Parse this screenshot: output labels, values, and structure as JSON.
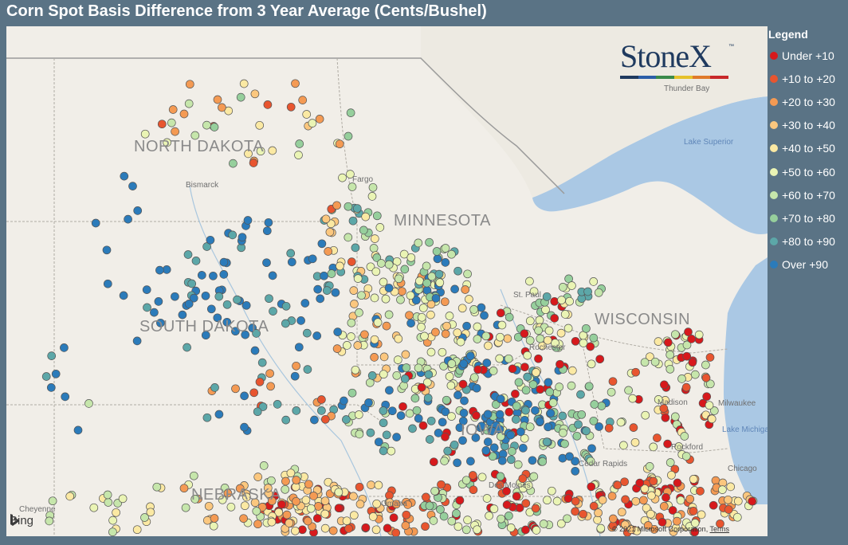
{
  "title": "Corn Spot Basis Difference from 3 Year Average (Cents/Bushel)",
  "legend": {
    "title": "Legend",
    "items": [
      {
        "label": "Under +10",
        "color": "#d7191c"
      },
      {
        "label": "+10 to +20",
        "color": "#e8552f"
      },
      {
        "label": "+20 to +30",
        "color": "#f49a53"
      },
      {
        "label": "+30 to +40",
        "color": "#fbc77e"
      },
      {
        "label": "+40 to +50",
        "color": "#fbe9a3"
      },
      {
        "label": "+50 to +60",
        "color": "#eaf4b4"
      },
      {
        "label": "+60 to +70",
        "color": "#c6e6ab"
      },
      {
        "label": "+70 to +80",
        "color": "#96cf9c"
      },
      {
        "label": "+80 to +90",
        "color": "#5ca7a8"
      },
      {
        "label": "Over +90",
        "color": "#2b7bba"
      }
    ]
  },
  "map": {
    "states": [
      "NORTH DAKOTA",
      "MINNESOTA",
      "SOUTH DAKOTA",
      "WISCONSIN",
      "IOWA",
      "NEBRASKA"
    ],
    "cities": [
      "Bismarck",
      "Fargo",
      "St. Paul",
      "Rochester",
      "Madison",
      "Milwaukee",
      "Rockford",
      "Chicago",
      "Cedar Rapids",
      "Des Moines",
      "Omaha",
      "Thunder Bay",
      "Cheyenne"
    ],
    "water": [
      "Lake Superior",
      "Lake Michigan"
    ],
    "logo": "StoneX",
    "logo_tm": "™",
    "logo_colors": [
      "#1f3a5f",
      "#2c5ea8",
      "#3a8a4a",
      "#e5c12a",
      "#e07a2a",
      "#c8282a"
    ],
    "provider": "Bing",
    "copyright": "© 2021 Microsoft Corporation",
    "terms": "Terms"
  }
}
